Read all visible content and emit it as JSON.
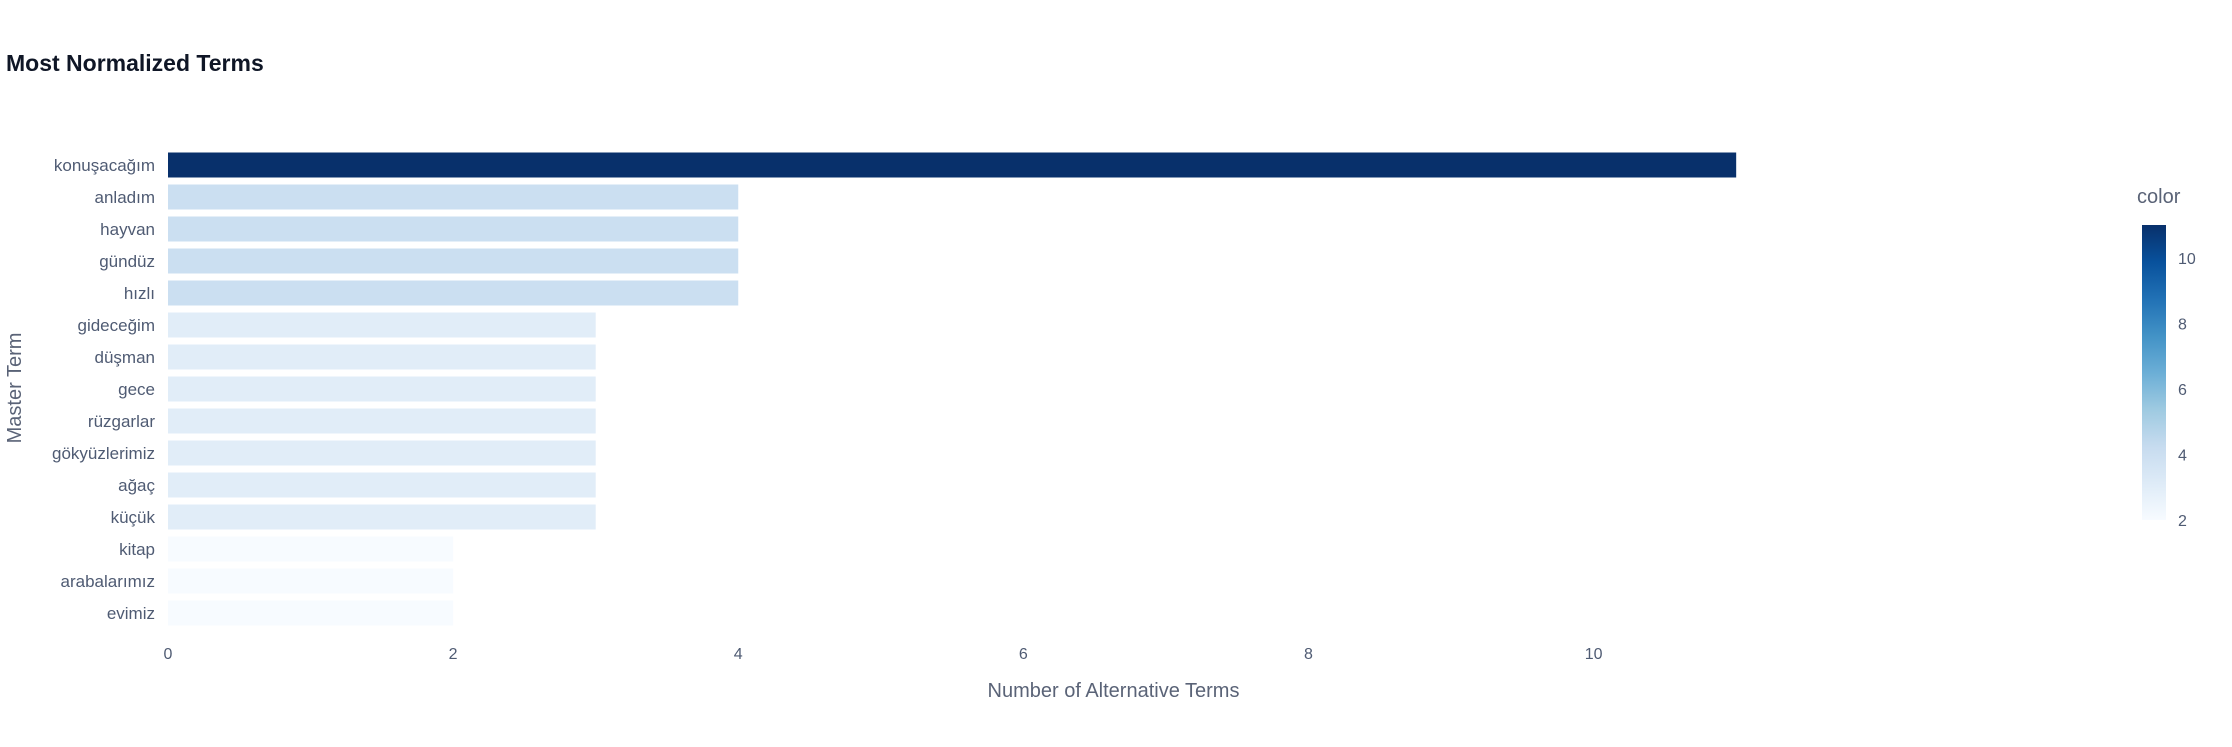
{
  "chart_data": {
    "type": "bar",
    "orientation": "horizontal",
    "title": "Most Normalized Terms",
    "xlabel": "Number of Alternative Terms",
    "ylabel": "Master Term",
    "categories": [
      "konuşacağım",
      "anladım",
      "hayvan",
      "gündüz",
      "hızlı",
      "gideceğim",
      "düşman",
      "gece",
      "rüzgarlar",
      "gökyüzlerimiz",
      "ağaç",
      "küçük",
      "kitap",
      "arabalarımız",
      "evimiz"
    ],
    "values": [
      11,
      4,
      4,
      4,
      4,
      3,
      3,
      3,
      3,
      3,
      3,
      3,
      2,
      2,
      2
    ],
    "xlim": [
      0,
      12.1
    ],
    "xticks": [
      "0",
      "2",
      "4",
      "6",
      "8",
      "10"
    ],
    "grid": false,
    "colorscale": "Blues",
    "colorbar": {
      "title": "color",
      "range": [
        2,
        11
      ],
      "ticks": [
        "2",
        "4",
        "6",
        "8",
        "10"
      ]
    },
    "colors": {
      "low": "#f7fbff",
      "high": "#08306b"
    }
  }
}
